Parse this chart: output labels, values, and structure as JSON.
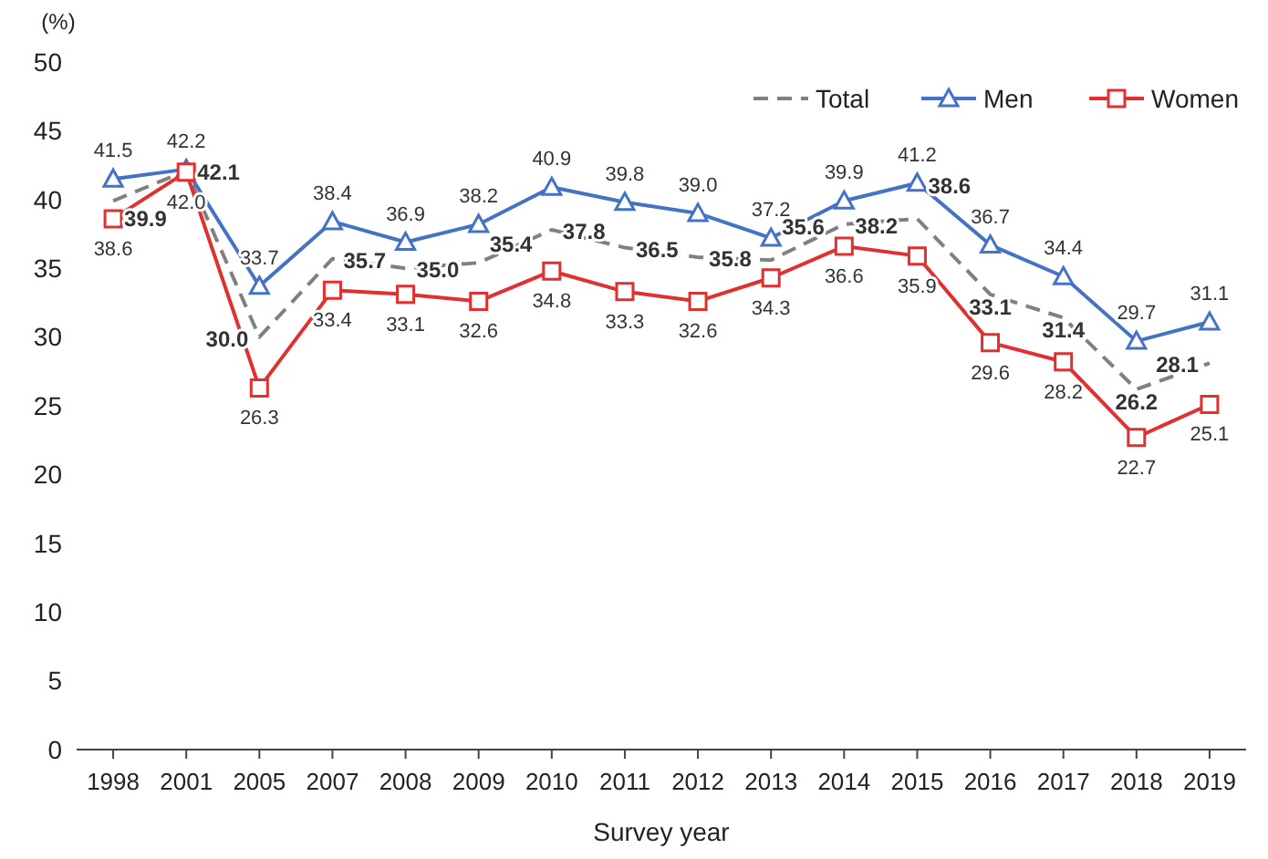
{
  "chart_data": {
    "type": "line",
    "xlabel": "Survey year",
    "ylabel": "(%)",
    "categories": [
      "1998",
      "2001",
      "2005",
      "2007",
      "2008",
      "2009",
      "2010",
      "2011",
      "2012",
      "2013",
      "2014",
      "2015",
      "2016",
      "2017",
      "2018",
      "2019"
    ],
    "series": [
      {
        "name": "Total",
        "color": "#808080",
        "line_style": "dashed",
        "marker": "none",
        "values": [
          39.9,
          42.1,
          30.0,
          35.7,
          35.0,
          35.4,
          37.8,
          36.5,
          35.8,
          35.6,
          38.2,
          38.6,
          33.1,
          31.4,
          26.2,
          28.1
        ],
        "value_labels": [
          "39.9",
          "42.1",
          "30.0",
          "35.7",
          "35.0",
          "35.4",
          "37.8",
          "36.5",
          "35.8",
          "35.6",
          "38.2",
          "38.6",
          "33.1",
          "31.4",
          "26.2",
          "28.1"
        ]
      },
      {
        "name": "Men",
        "color": "#4472c4",
        "line_style": "solid",
        "marker": "triangle",
        "values": [
          41.5,
          42.2,
          33.7,
          38.4,
          36.9,
          38.2,
          40.9,
          39.8,
          39.0,
          37.2,
          39.9,
          41.2,
          36.7,
          34.4,
          29.7,
          31.1
        ],
        "value_labels": [
          "41.5",
          "42.2",
          "33.7",
          "38.4",
          "36.9",
          "38.2",
          "40.9",
          "39.8",
          "39.0",
          "37.2",
          "39.9",
          "41.2",
          "36.7",
          "34.4",
          "29.7",
          "31.1"
        ]
      },
      {
        "name": "Women",
        "color": "#e03030",
        "line_style": "solid",
        "marker": "square",
        "values": [
          38.6,
          42.0,
          26.3,
          33.4,
          33.1,
          32.6,
          34.8,
          33.3,
          32.6,
          34.3,
          36.6,
          35.9,
          29.6,
          28.2,
          22.7,
          25.1
        ],
        "value_labels": [
          "38.6",
          "42.0",
          "26.3",
          "33.4",
          "33.1",
          "32.6",
          "34.8",
          "33.3",
          "32.6",
          "34.3",
          "36.6",
          "35.9",
          "29.6",
          "28.2",
          "22.7",
          "25.1"
        ]
      }
    ],
    "ylim": [
      0,
      50
    ],
    "yticks": [
      0,
      5,
      10,
      15,
      20,
      25,
      30,
      35,
      40,
      45,
      50
    ],
    "grid": false,
    "legend": "top right"
  }
}
